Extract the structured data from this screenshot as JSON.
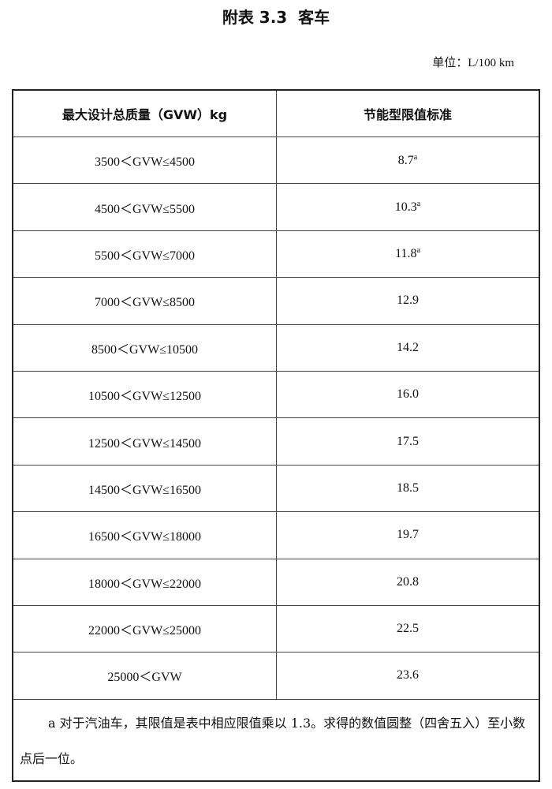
{
  "header": {
    "title": "附表 3.3  客车",
    "unit": "单位：L/100 km"
  },
  "table": {
    "columns": [
      "最大设计总质量（GVW）kg",
      "节能型限值标准"
    ],
    "rows": [
      {
        "range": "3500＜GVW≤4500",
        "value": "8.7",
        "note": "a"
      },
      {
        "range": "4500＜GVW≤5500",
        "value": "10.3",
        "note": "a"
      },
      {
        "range": "5500＜GVW≤7000",
        "value": "11.8",
        "note": "a"
      },
      {
        "range": "7000＜GVW≤8500",
        "value": "12.9"
      },
      {
        "range": "8500＜GVW≤10500",
        "value": "14.2"
      },
      {
        "range": "10500＜GVW≤12500",
        "value": "16.0"
      },
      {
        "range": "12500＜GVW≤14500",
        "value": "17.5"
      },
      {
        "range": "14500＜GVW≤16500",
        "value": "18.5"
      },
      {
        "range": "16500＜GVW≤18000",
        "value": "19.7"
      },
      {
        "range": "18000＜GVW≤22000",
        "value": "20.8"
      },
      {
        "range": "22000＜GVW≤25000",
        "value": "22.5"
      },
      {
        "range": "25000＜GVW",
        "value": "23.6"
      }
    ],
    "footnote": "a  对于汽油车，其限值是表中相应限值乘以 1.3。求得的数值圆整（四舍五入）至小数点后一位。"
  }
}
